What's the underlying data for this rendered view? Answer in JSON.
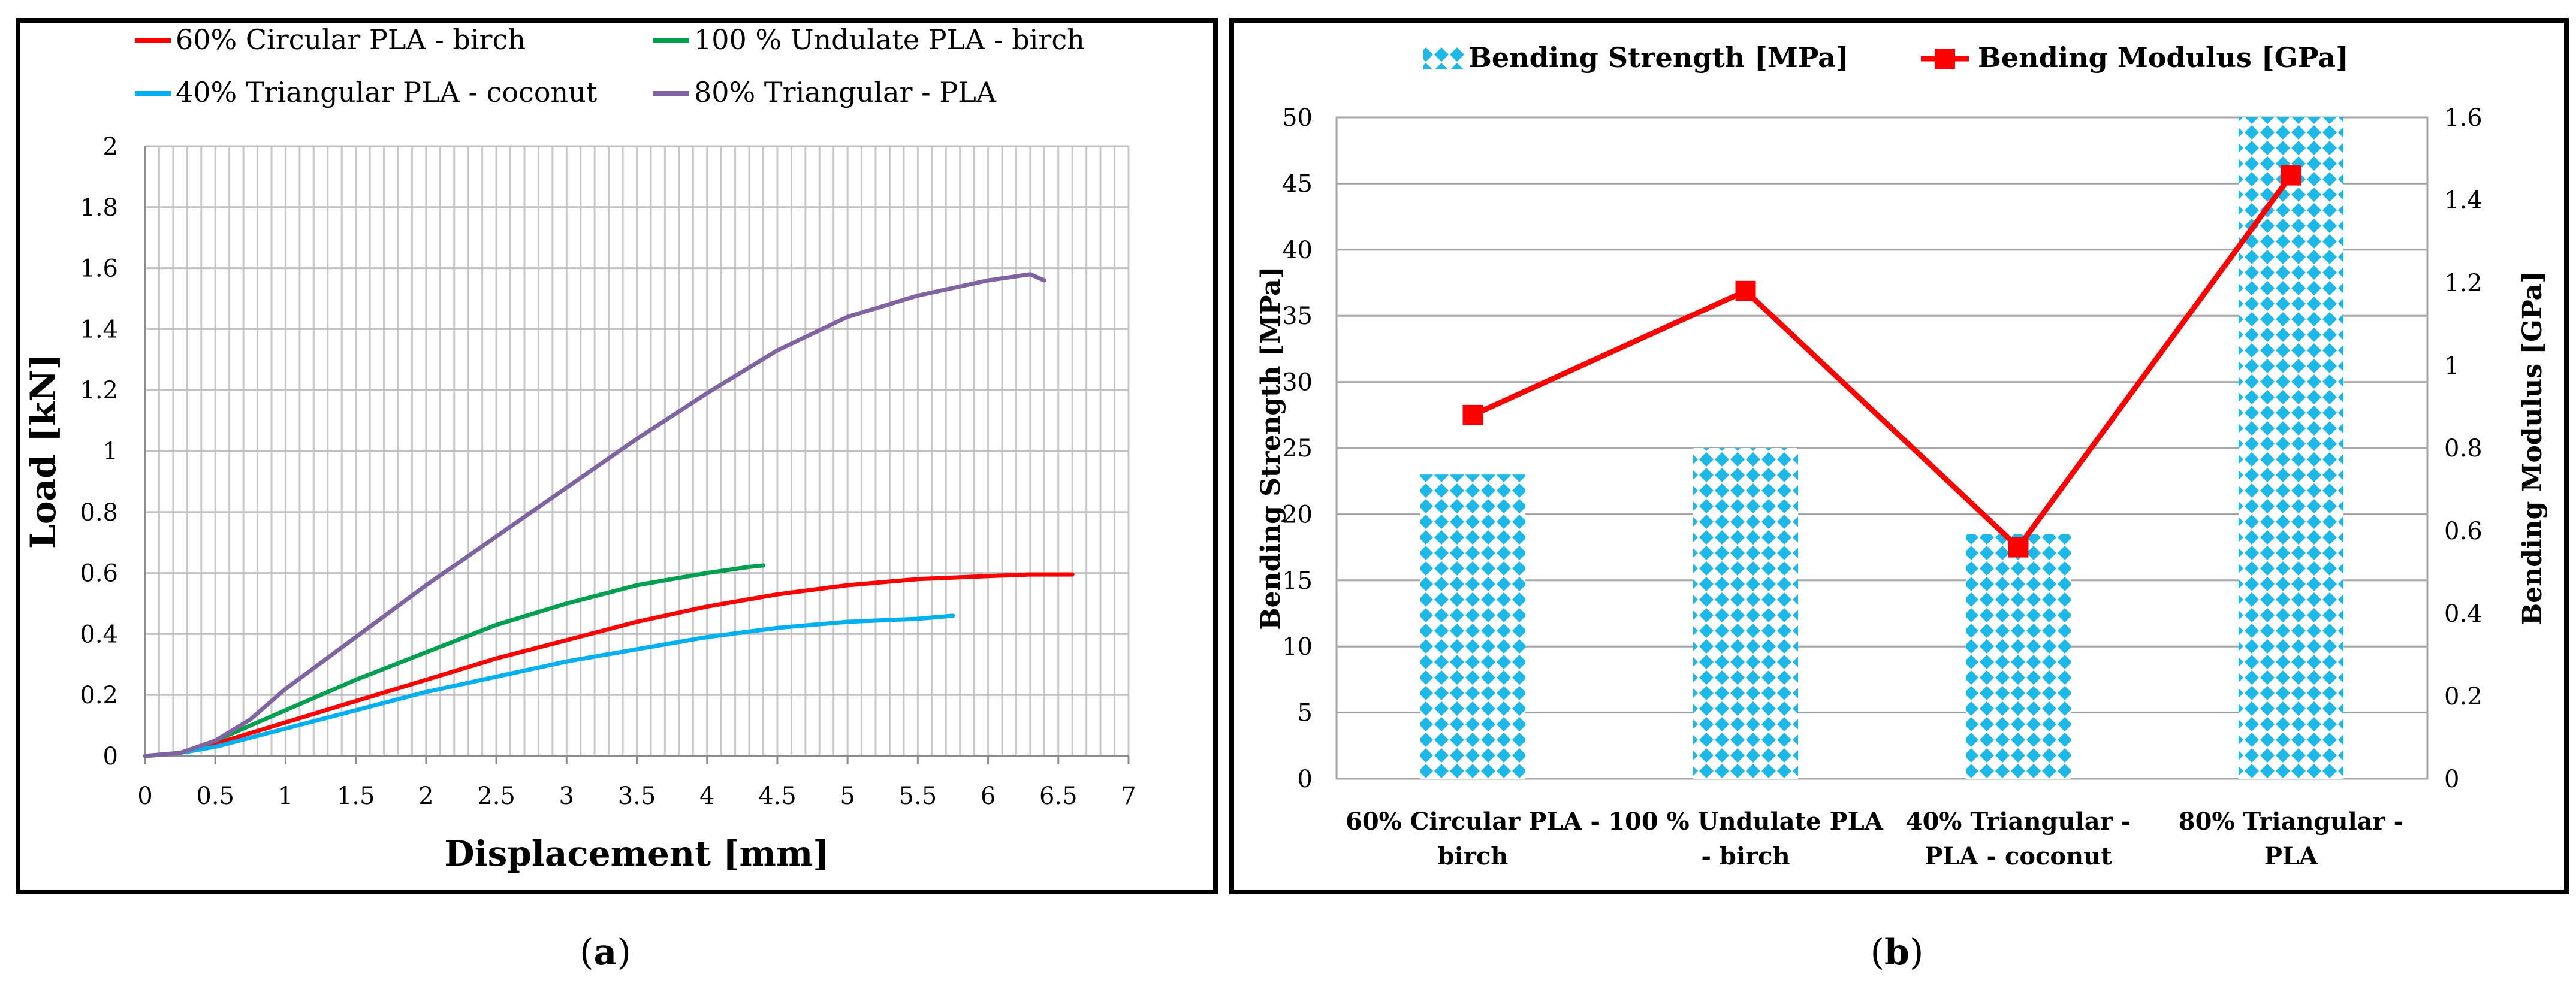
{
  "panels": {
    "a_label": "a",
    "b_label": "b"
  },
  "chart_data": [
    {
      "type": "line",
      "panel": "a",
      "xlabel": "Displacement [mm]",
      "ylabel": "Load [kN]",
      "xlim": [
        0,
        7
      ],
      "ylim": [
        0,
        2
      ],
      "xticks": [
        0,
        0.5,
        1,
        1.5,
        2,
        2.5,
        3,
        3.5,
        4,
        4.5,
        5,
        5.5,
        6,
        6.5,
        7
      ],
      "yticks": [
        0,
        0.2,
        0.4,
        0.6,
        0.8,
        1,
        1.2,
        1.4,
        1.6,
        1.8,
        2
      ],
      "xtick_labels": [
        "0",
        "0.5",
        "1",
        "1.5",
        "2",
        "2.5",
        "3",
        "3.5",
        "4",
        "4.5",
        "5",
        "5.5",
        "6",
        "6.5",
        "7"
      ],
      "ytick_labels": [
        "0",
        "0.2",
        "0.4",
        "0.6",
        "0.8",
        "1",
        "1.2",
        "1.4",
        "1.6",
        "1.8",
        "2"
      ],
      "grid": true,
      "legend": "top",
      "series": [
        {
          "name": "60% Circular PLA - birch",
          "color": "#ff0000",
          "x": [
            0,
            0.25,
            0.5,
            1,
            1.5,
            2,
            2.5,
            3,
            3.5,
            4,
            4.5,
            5,
            5.5,
            6,
            6.3,
            6.6
          ],
          "y": [
            0,
            0.01,
            0.04,
            0.11,
            0.18,
            0.25,
            0.32,
            0.38,
            0.44,
            0.49,
            0.53,
            0.56,
            0.58,
            0.59,
            0.595,
            0.595
          ]
        },
        {
          "name": "100 % Undulate PLA - birch",
          "color": "#00a050",
          "x": [
            0,
            0.25,
            0.5,
            0.75,
            1,
            1.5,
            2,
            2.5,
            3,
            3.5,
            4,
            4.3,
            4.4
          ],
          "y": [
            0,
            0.01,
            0.05,
            0.1,
            0.15,
            0.25,
            0.34,
            0.43,
            0.5,
            0.56,
            0.6,
            0.62,
            0.625
          ]
        },
        {
          "name": "40% Triangular PLA - coconut",
          "color": "#00b0f0",
          "x": [
            0,
            0.25,
            0.5,
            1,
            1.5,
            2,
            2.5,
            3,
            3.5,
            4,
            4.5,
            5,
            5.5,
            5.75
          ],
          "y": [
            0,
            0.01,
            0.03,
            0.09,
            0.15,
            0.21,
            0.26,
            0.31,
            0.35,
            0.39,
            0.42,
            0.44,
            0.45,
            0.46
          ]
        },
        {
          "name": "80% Triangular - PLA",
          "color": "#8064a2",
          "x": [
            0,
            0.25,
            0.5,
            0.75,
            1,
            1.5,
            2,
            2.5,
            3,
            3.5,
            4,
            4.5,
            5,
            5.5,
            6,
            6.3,
            6.4
          ],
          "y": [
            0,
            0.01,
            0.05,
            0.12,
            0.22,
            0.39,
            0.56,
            0.72,
            0.88,
            1.04,
            1.19,
            1.33,
            1.44,
            1.51,
            1.56,
            1.58,
            1.56
          ]
        }
      ]
    },
    {
      "type": "bar",
      "panel": "b",
      "categories": [
        "60% Circular PLA - birch",
        "100 % Undulate PLA - birch",
        "40% Triangular - PLA - coconut",
        "80% Triangular - PLA"
      ],
      "category_lines": [
        [
          "60% Circular PLA -",
          "birch"
        ],
        [
          "100 % Undulate PLA",
          "- birch"
        ],
        [
          "40% Triangular -",
          "PLA - coconut"
        ],
        [
          "80% Triangular -",
          "PLA"
        ]
      ],
      "ylabel": "Bending Strength [MPa]",
      "y2label": "Bending Modulus [GPa]",
      "ylim": [
        0,
        50
      ],
      "y2lim": [
        0,
        1.6
      ],
      "yticks": [
        0,
        5,
        10,
        15,
        20,
        25,
        30,
        35,
        40,
        45,
        50
      ],
      "y2ticks": [
        0,
        0.2,
        0.4,
        0.6,
        0.8,
        1,
        1.2,
        1.4,
        1.6
      ],
      "ytick_labels": [
        "0",
        "5",
        "10",
        "15",
        "20",
        "25",
        "30",
        "35",
        "40",
        "45",
        "50"
      ],
      "y2tick_labels": [
        "0",
        "0.2",
        "0.4",
        "0.6",
        "0.8",
        "1",
        "1.2",
        "1.4",
        "1.6"
      ],
      "grid": true,
      "legend": "top",
      "series": [
        {
          "name": "Bending Strength [MPa]",
          "type": "bar",
          "axis": "left",
          "color": "#1cb8e8",
          "values": [
            23,
            25,
            18.5,
            50
          ]
        },
        {
          "name": "Bending Modulus [GPa]",
          "type": "line",
          "axis": "right",
          "color": "#ff0000",
          "values": [
            0.88,
            1.18,
            0.56,
            1.46
          ]
        }
      ]
    }
  ]
}
